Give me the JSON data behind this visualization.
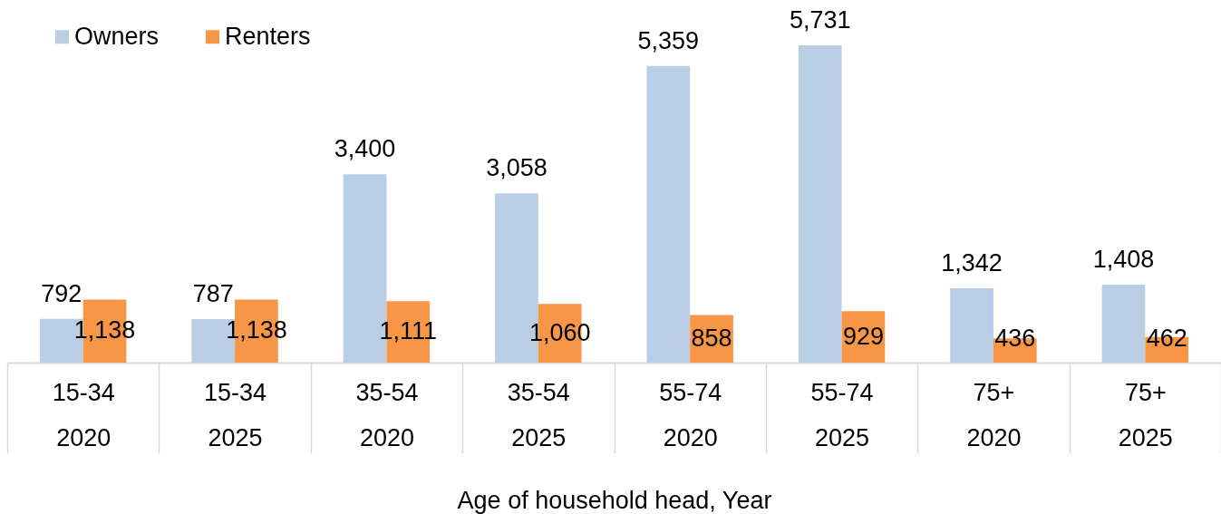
{
  "chart_data": {
    "type": "bar",
    "categories": [
      "15-34\n2020",
      "15-34\n2025",
      "35-54\n2020",
      "35-54\n2025",
      "55-74\n2020",
      "55-74\n2025",
      "75+\n2020",
      "75+\n2025"
    ],
    "series": [
      {
        "name": "Owners",
        "color": "#b9cde5",
        "values": [
          792,
          787,
          3400,
          3058,
          5359,
          5731,
          1342,
          1408
        ],
        "value_labels": [
          "792",
          "787",
          "3,400",
          "3,058",
          "5,359",
          "5,731",
          "1,342",
          "1,408"
        ]
      },
      {
        "name": "Renters",
        "color": "#f79646",
        "values": [
          1138,
          1138,
          1111,
          1060,
          858,
          929,
          436,
          462
        ],
        "value_labels": [
          "1,138",
          "1,138",
          "1,111",
          "1,060",
          "858",
          "929",
          "436",
          "462"
        ]
      }
    ],
    "xlabel": "Age of household head, Year",
    "legend": "top left",
    "tick_labels": "x"
  }
}
